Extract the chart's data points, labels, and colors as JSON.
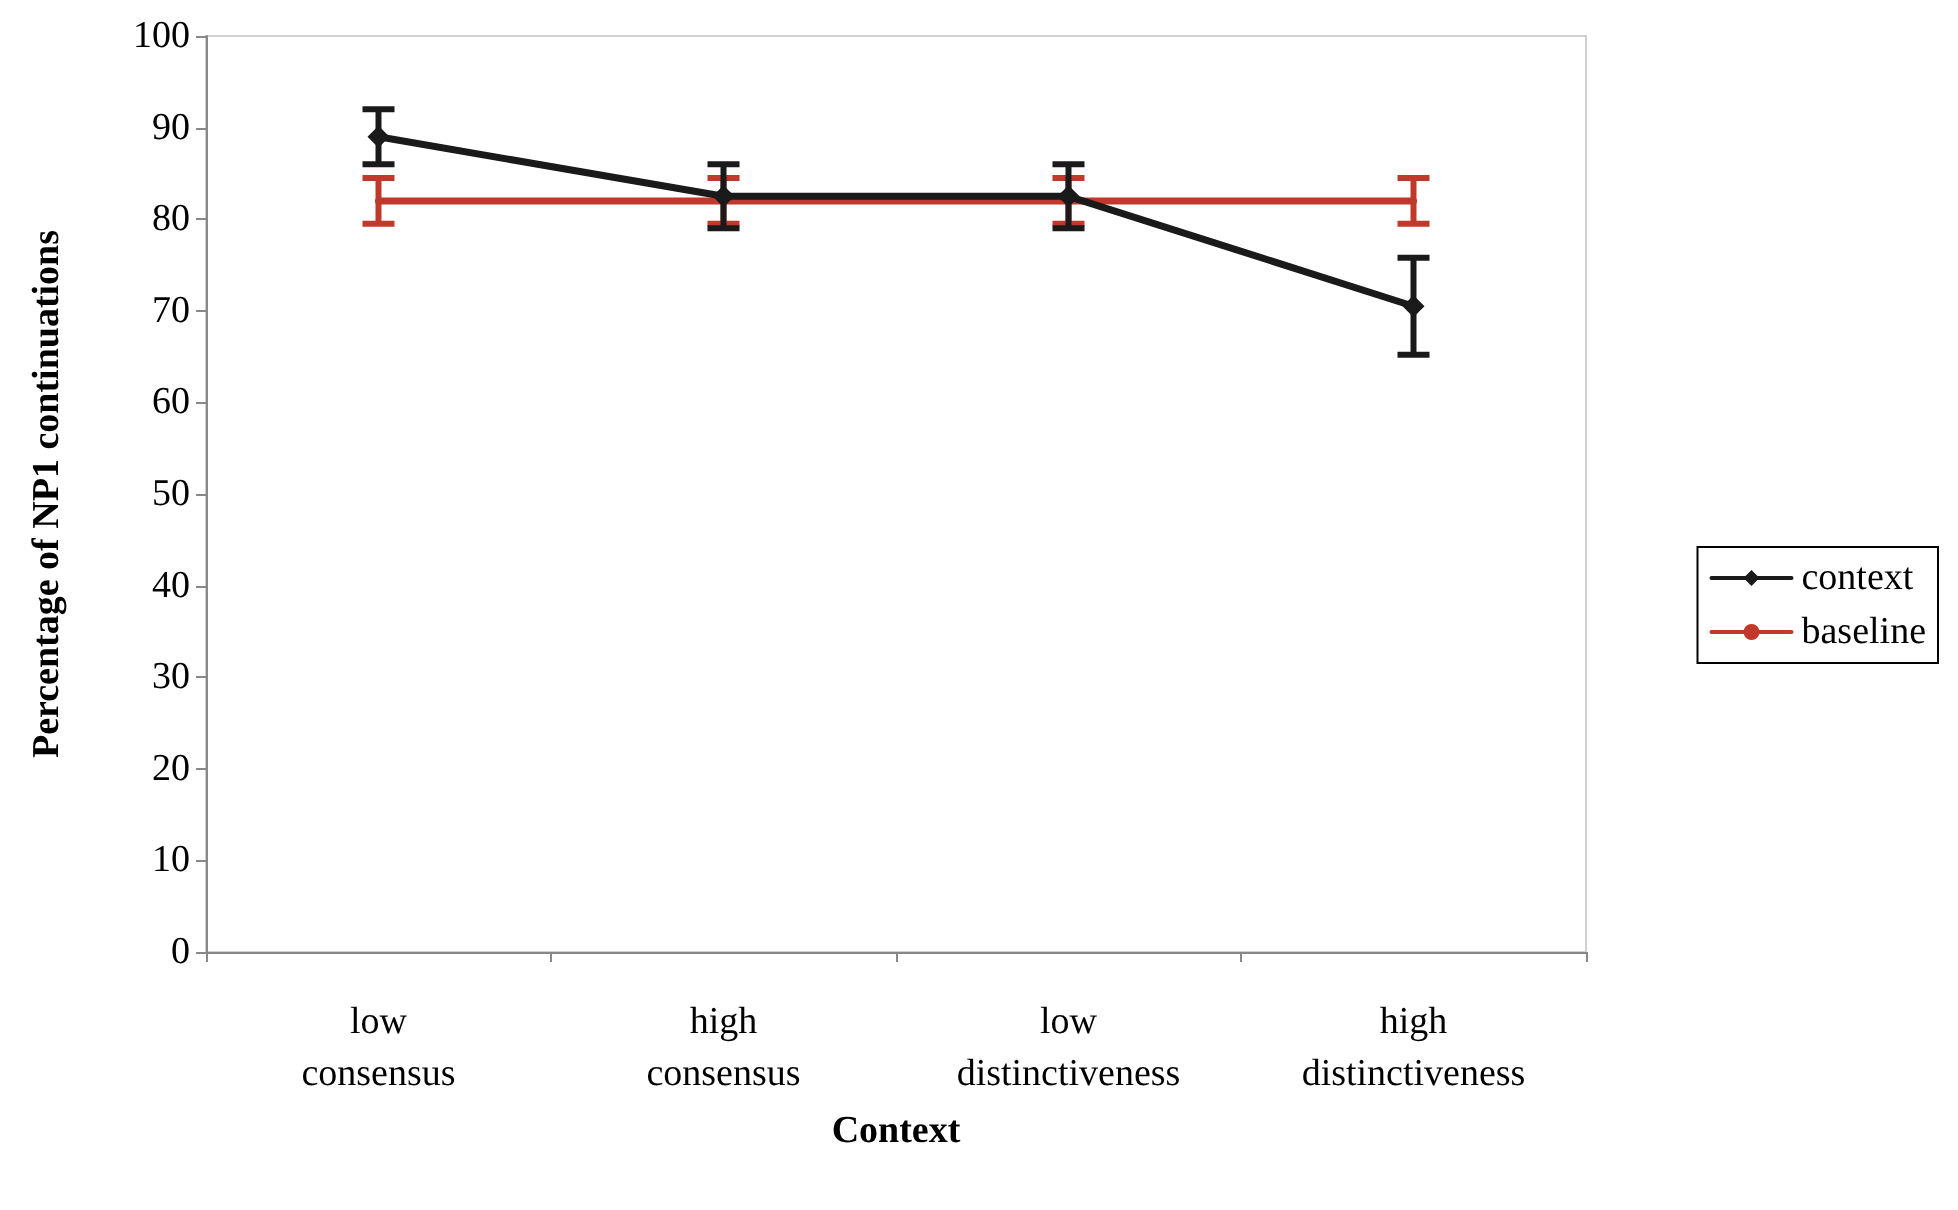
{
  "chart_data": {
    "type": "line",
    "xlabel": "Context",
    "ylabel": "Percentage of NP1 continuations",
    "categories": [
      "low\nconsensus",
      "high\nconsensus",
      "low\ndistinctiveness",
      "high\ndistinctiveness"
    ],
    "series": [
      {
        "name": "context",
        "color": "#1a1a1a",
        "values": [
          89,
          82.5,
          82.5,
          70.5
        ],
        "errors": [
          3,
          3.5,
          3.5,
          5.3
        ],
        "marker": "diamond"
      },
      {
        "name": "baseline",
        "color": "#c0392b",
        "values": [
          82,
          82,
          82,
          82
        ],
        "errors": [
          2.5,
          2.5,
          2.5,
          2.5
        ],
        "marker": "none"
      }
    ],
    "ylim": [
      0,
      100
    ],
    "yticks": [
      0,
      10,
      20,
      30,
      40,
      50,
      60,
      70,
      80,
      90,
      100
    ],
    "grid": false,
    "legend": "right"
  }
}
